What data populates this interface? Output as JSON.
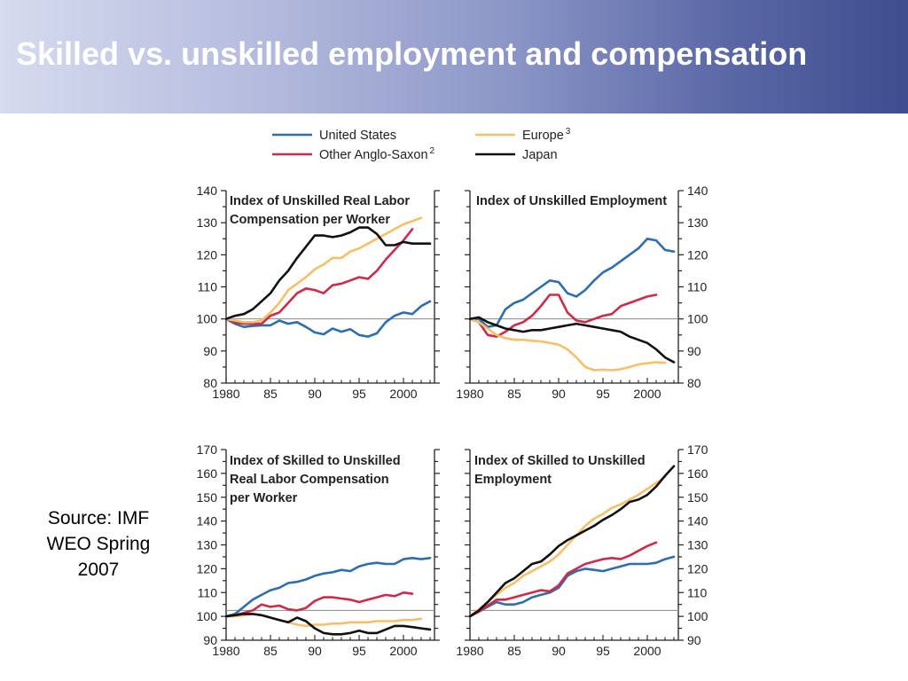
{
  "header": {
    "title": "Skilled vs. unskilled employment and compensation"
  },
  "source": {
    "lines": [
      "Source: IMF",
      "WEO Spring",
      "2007"
    ]
  },
  "colors": {
    "united_states": "#2c6eb0",
    "other_anglo_saxon": "#cf2a4a",
    "europe": "#f7bf66",
    "japan": "#111111",
    "baseline": "#888888"
  },
  "legend": [
    {
      "label": "United States",
      "sup": "",
      "series": "us"
    },
    {
      "label": "Other Anglo-Saxon",
      "sup": "2",
      "series": "oas"
    },
    {
      "label": "Europe",
      "sup": "3",
      "series": "eu"
    },
    {
      "label": "Japan",
      "sup": "",
      "series": "jp"
    }
  ],
  "chart_data": [
    {
      "type": "line",
      "title": [
        "Index of Unskilled Real Labor",
        "Compensation per Worker"
      ],
      "x_ticks": [
        "1980",
        "85",
        "90",
        "95",
        "2000"
      ],
      "xlim": [
        1980,
        2003.5
      ],
      "ylim": [
        80,
        140
      ],
      "y_ticks": [
        80,
        90,
        100,
        110,
        120,
        130,
        140
      ],
      "y_axis_side": "left",
      "baseline": 100,
      "series": [
        {
          "key": "us",
          "x": [
            1980,
            1981,
            1982,
            1983,
            1984,
            1985,
            1986,
            1987,
            1988,
            1989,
            1990,
            1991,
            1992,
            1993,
            1994,
            1995,
            1996,
            1997,
            1998,
            1999,
            2000,
            2001,
            2002,
            2003
          ],
          "y": [
            100,
            98.5,
            97.5,
            97.8,
            98,
            98,
            99.5,
            98.5,
            99,
            97.5,
            95.8,
            95.2,
            97,
            96,
            96.8,
            95,
            94.5,
            95.5,
            99,
            101,
            102,
            101.5,
            104,
            105.5
          ]
        },
        {
          "key": "oas",
          "x": [
            1980,
            1981,
            1982,
            1983,
            1984,
            1985,
            1986,
            1987,
            1988,
            1989,
            1990,
            1991,
            1992,
            1993,
            1994,
            1995,
            1996,
            1997,
            1998,
            1999,
            2000,
            2001
          ],
          "y": [
            100,
            99,
            98.5,
            98.5,
            98.5,
            101,
            102,
            105,
            108,
            109.5,
            109,
            108,
            110.5,
            111,
            112,
            113,
            112.5,
            115,
            118.5,
            121.5,
            124.5,
            128
          ]
        },
        {
          "key": "eu",
          "x": [
            1980,
            1981,
            1982,
            1983,
            1984,
            1985,
            1986,
            1987,
            1988,
            1989,
            1990,
            1991,
            1992,
            1993,
            1994,
            1995,
            1996,
            1997,
            1998,
            1999,
            2000,
            2001,
            2002
          ],
          "y": [
            100,
            99.5,
            99,
            99,
            99.5,
            102,
            105,
            109,
            111,
            113,
            115.5,
            117,
            119,
            119,
            121,
            122,
            123.5,
            125,
            126.5,
            128,
            129.5,
            130.5,
            131.5
          ]
        },
        {
          "key": "jp",
          "x": [
            1980,
            1981,
            1982,
            1983,
            1984,
            1985,
            1986,
            1987,
            1988,
            1989,
            1990,
            1991,
            1992,
            1993,
            1994,
            1995,
            1996,
            1997,
            1998,
            1999,
            2000,
            2001,
            2002,
            2003
          ],
          "y": [
            100,
            101,
            101.5,
            103,
            105.5,
            108,
            112,
            115,
            119,
            122.5,
            126,
            126,
            125.5,
            126,
            127,
            128.5,
            128.5,
            126.5,
            123,
            123,
            124,
            123.5,
            123.5,
            123.5
          ]
        }
      ]
    },
    {
      "type": "line",
      "title": [
        "Index of Unskilled Employment"
      ],
      "x_ticks": [
        "1980",
        "85",
        "90",
        "95",
        "2000"
      ],
      "xlim": [
        1980,
        2003.5
      ],
      "ylim": [
        80,
        140
      ],
      "y_ticks": [
        80,
        90,
        100,
        110,
        120,
        130,
        140
      ],
      "y_axis_side": "right",
      "baseline": 100,
      "series": [
        {
          "key": "us",
          "x": [
            1980,
            1981,
            1982,
            1983,
            1984,
            1985,
            1986,
            1987,
            1988,
            1989,
            1990,
            1991,
            1992,
            1993,
            1994,
            1995,
            1996,
            1997,
            1998,
            1999,
            2000,
            2001,
            2002,
            2003
          ],
          "y": [
            100,
            100,
            97.5,
            98,
            103,
            105,
            106,
            108,
            110,
            112,
            111.5,
            108,
            107,
            109,
            112,
            114.5,
            116,
            118,
            120,
            122,
            125,
            124.5,
            121.5,
            121
          ]
        },
        {
          "key": "oas",
          "x": [
            1980,
            1981,
            1982,
            1983,
            1984,
            1985,
            1986,
            1987,
            1988,
            1989,
            1990,
            1991,
            1992,
            1993,
            1994,
            1995,
            1996,
            1997,
            1998,
            1999,
            2000,
            2001
          ],
          "y": [
            100,
            99,
            95,
            94.5,
            96,
            98,
            99,
            101,
            104,
            107.5,
            107.5,
            102,
            99.5,
            99,
            100,
            101,
            101.5,
            104,
            105,
            106,
            107,
            107.5
          ]
        },
        {
          "key": "eu",
          "x": [
            1980,
            1981,
            1982,
            1983,
            1984,
            1985,
            1986,
            1987,
            1988,
            1989,
            1990,
            1991,
            1992,
            1993,
            1994,
            1995,
            1996,
            1997,
            1998,
            1999,
            2000,
            2001,
            2002
          ],
          "y": [
            100,
            99,
            97,
            95,
            94,
            93.5,
            93.5,
            93.2,
            93,
            92.5,
            92,
            90.5,
            88,
            85,
            84,
            84.2,
            84,
            84.3,
            85,
            85.8,
            86.2,
            86.5,
            86.3
          ]
        },
        {
          "key": "jp",
          "x": [
            1980,
            1981,
            1982,
            1983,
            1984,
            1985,
            1986,
            1987,
            1988,
            1989,
            1990,
            1991,
            1992,
            1993,
            1994,
            1995,
            1996,
            1997,
            1998,
            1999,
            2000,
            2001,
            2002,
            2003
          ],
          "y": [
            100,
            100.5,
            99,
            98,
            97,
            96.5,
            96,
            96.5,
            96.5,
            97,
            97.5,
            98,
            98.5,
            98,
            97.5,
            97,
            96.5,
            96,
            94.5,
            93.5,
            92.5,
            90.5,
            88,
            86.5
          ]
        }
      ]
    },
    {
      "type": "line",
      "title": [
        "Index of Skilled to Unskilled",
        "Real Labor Compensation",
        "per Worker"
      ],
      "x_ticks": [
        "1980",
        "85",
        "90",
        "95",
        "2000"
      ],
      "xlim": [
        1980,
        2003.5
      ],
      "ylim": [
        90,
        170
      ],
      "y_ticks": [
        90,
        100,
        110,
        120,
        130,
        140,
        150,
        160,
        170
      ],
      "y_axis_side": "left",
      "baseline": 102.5,
      "series": [
        {
          "key": "us",
          "x": [
            1980,
            1981,
            1982,
            1983,
            1984,
            1985,
            1986,
            1987,
            1988,
            1989,
            1990,
            1991,
            1992,
            1993,
            1994,
            1995,
            1996,
            1997,
            1998,
            1999,
            2000,
            2001,
            2002,
            2003
          ],
          "y": [
            100,
            101,
            104,
            107,
            109,
            111,
            112,
            114,
            114.5,
            115.5,
            117,
            118,
            118.5,
            119.5,
            119,
            121,
            122,
            122.5,
            122,
            122,
            124,
            124.5,
            124,
            124.5
          ]
        },
        {
          "key": "oas",
          "x": [
            1980,
            1981,
            1982,
            1983,
            1984,
            1985,
            1986,
            1987,
            1988,
            1989,
            1990,
            1991,
            1992,
            1993,
            1994,
            1995,
            1996,
            1997,
            1998,
            1999,
            2000,
            2001
          ],
          "y": [
            100,
            100.5,
            101.5,
            102.5,
            105,
            104,
            104.5,
            103,
            102.5,
            103.5,
            106.5,
            108,
            108,
            107.5,
            107,
            106,
            107,
            108,
            109,
            108.5,
            110,
            109.5
          ]
        },
        {
          "key": "eu",
          "x": [
            1980,
            1981,
            1982,
            1983,
            1984,
            1985,
            1986,
            1987,
            1988,
            1989,
            1990,
            1991,
            1992,
            1993,
            1994,
            1995,
            1996,
            1997,
            1998,
            1999,
            2000,
            2001,
            2002
          ],
          "y": [
            100,
            100,
            100.5,
            101,
            100.5,
            99.5,
            98.5,
            97.5,
            96.5,
            96,
            96.5,
            96.5,
            97,
            97,
            97.5,
            97.5,
            97.5,
            98,
            98,
            98,
            98.5,
            98.5,
            99
          ]
        },
        {
          "key": "jp",
          "x": [
            1980,
            1981,
            1982,
            1983,
            1984,
            1985,
            1986,
            1987,
            1988,
            1989,
            1990,
            1991,
            1992,
            1993,
            1994,
            1995,
            1996,
            1997,
            1998,
            1999,
            2000,
            2001,
            2002,
            2003
          ],
          "y": [
            100,
            100.5,
            101,
            101,
            100.5,
            99.5,
            98.5,
            97.5,
            99.5,
            98,
            95,
            93,
            92.5,
            92.5,
            93,
            94,
            93,
            93,
            94.5,
            96,
            96,
            95.5,
            95,
            94.5
          ]
        }
      ]
    },
    {
      "type": "line",
      "title": [
        "Index of Skilled to Unskilled",
        "Employment"
      ],
      "x_ticks": [
        "1980",
        "85",
        "90",
        "95",
        "2000"
      ],
      "xlim": [
        1980,
        2003.5
      ],
      "ylim": [
        90,
        170
      ],
      "y_ticks": [
        90,
        100,
        110,
        120,
        130,
        140,
        150,
        160,
        170
      ],
      "y_axis_side": "right",
      "baseline": 102.5,
      "series": [
        {
          "key": "us",
          "x": [
            1980,
            1981,
            1982,
            1983,
            1984,
            1985,
            1986,
            1987,
            1988,
            1989,
            1990,
            1991,
            1992,
            1993,
            1994,
            1995,
            1996,
            1997,
            1998,
            1999,
            2000,
            2001,
            2002,
            2003
          ],
          "y": [
            100,
            102,
            104,
            106,
            105,
            105,
            106,
            108,
            109,
            110,
            112,
            117,
            119,
            120,
            119.5,
            119,
            120,
            121,
            122,
            122,
            122,
            122.5,
            124,
            125
          ]
        },
        {
          "key": "oas",
          "x": [
            1980,
            1981,
            1982,
            1983,
            1984,
            1985,
            1986,
            1987,
            1988,
            1989,
            1990,
            1991,
            1992,
            1993,
            1994,
            1995,
            1996,
            1997,
            1998,
            1999,
            2000,
            2001
          ],
          "y": [
            100,
            102,
            104.5,
            107,
            107,
            108,
            109,
            110,
            111,
            110.5,
            113,
            118,
            120,
            122,
            123,
            124,
            124.5,
            124,
            125.5,
            127.5,
            129.5,
            131
          ]
        },
        {
          "key": "eu",
          "x": [
            1980,
            1981,
            1982,
            1983,
            1984,
            1985,
            1986,
            1987,
            1988,
            1989,
            1990,
            1991,
            1992,
            1993,
            1994,
            1995,
            1996,
            1997,
            1998,
            1999,
            2000,
            2001,
            2002
          ],
          "y": [
            100,
            103,
            106,
            109,
            112,
            114,
            117,
            119,
            121,
            123,
            126,
            130,
            134,
            138,
            141,
            143,
            145.5,
            147,
            149,
            151,
            153.5,
            156,
            158.5
          ]
        },
        {
          "key": "jp",
          "x": [
            1980,
            1981,
            1982,
            1983,
            1984,
            1985,
            1986,
            1987,
            1988,
            1989,
            1990,
            1991,
            1992,
            1993,
            1994,
            1995,
            1996,
            1997,
            1998,
            1999,
            2000,
            2001,
            2002,
            2003
          ],
          "y": [
            100,
            102.5,
            106,
            110,
            114,
            116,
            119,
            122,
            123,
            126,
            129.5,
            132,
            134,
            136,
            138,
            140.5,
            142.5,
            145,
            148,
            149,
            151,
            154.5,
            159,
            163
          ]
        }
      ]
    }
  ]
}
